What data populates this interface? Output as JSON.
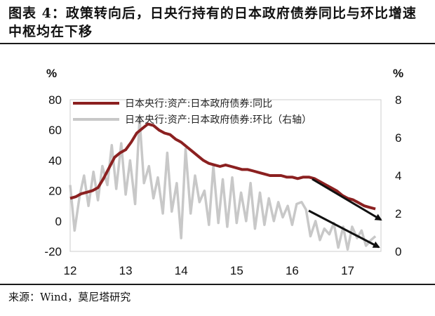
{
  "title": "图表 4：政策转向后，日央行持有的日本政府债券同比与环比增速中枢均在下移",
  "source": "来源：Wind，莫尼塔研究",
  "chart_data": {
    "type": "line",
    "left_unit": "%",
    "right_unit": "%",
    "ylim": [
      -20,
      80
    ],
    "y2lim": [
      0,
      8
    ],
    "yticks": [
      -20,
      0,
      20,
      40,
      60,
      80
    ],
    "y2ticks": [
      0,
      2,
      4,
      6,
      8
    ],
    "xlim": [
      2012,
      2017.6
    ],
    "xticks": [
      {
        "value": 2012,
        "label": "12"
      },
      {
        "value": 2013,
        "label": "13"
      },
      {
        "value": 2014,
        "label": "14"
      },
      {
        "value": 2015,
        "label": "15"
      },
      {
        "value": 2016,
        "label": "16"
      },
      {
        "value": 2017,
        "label": "17"
      }
    ],
    "legend": "top",
    "series": [
      {
        "name": "日本央行:资产:日本政府债券:同比",
        "axis": "left",
        "color": "#8b2020",
        "points": [
          [
            2012.0,
            15
          ],
          [
            2012.1,
            16
          ],
          [
            2012.2,
            18
          ],
          [
            2012.3,
            19
          ],
          [
            2012.4,
            20
          ],
          [
            2012.5,
            22
          ],
          [
            2012.6,
            28
          ],
          [
            2012.7,
            35
          ],
          [
            2012.8,
            42
          ],
          [
            2012.9,
            45
          ],
          [
            2013.0,
            47
          ],
          [
            2013.1,
            52
          ],
          [
            2013.2,
            58
          ],
          [
            2013.3,
            61
          ],
          [
            2013.4,
            64
          ],
          [
            2013.5,
            63
          ],
          [
            2013.6,
            60
          ],
          [
            2013.7,
            58
          ],
          [
            2013.8,
            57
          ],
          [
            2013.9,
            54
          ],
          [
            2014.0,
            52
          ],
          [
            2014.1,
            49
          ],
          [
            2014.2,
            46
          ],
          [
            2014.3,
            43
          ],
          [
            2014.4,
            40
          ],
          [
            2014.5,
            38
          ],
          [
            2014.6,
            37
          ],
          [
            2014.7,
            36
          ],
          [
            2014.8,
            37
          ],
          [
            2014.9,
            36
          ],
          [
            2015.0,
            35
          ],
          [
            2015.1,
            34
          ],
          [
            2015.2,
            34
          ],
          [
            2015.3,
            33
          ],
          [
            2015.4,
            32
          ],
          [
            2015.5,
            31
          ],
          [
            2015.6,
            30
          ],
          [
            2015.7,
            30
          ],
          [
            2015.8,
            30
          ],
          [
            2015.9,
            29
          ],
          [
            2016.0,
            29
          ],
          [
            2016.1,
            28
          ],
          [
            2016.2,
            29
          ],
          [
            2016.3,
            29
          ],
          [
            2016.4,
            28
          ],
          [
            2016.5,
            26
          ],
          [
            2016.6,
            24
          ],
          [
            2016.7,
            22
          ],
          [
            2016.8,
            20
          ],
          [
            2016.9,
            17
          ],
          [
            2017.0,
            15
          ],
          [
            2017.1,
            14
          ],
          [
            2017.2,
            12
          ],
          [
            2017.3,
            10
          ],
          [
            2017.4,
            9
          ],
          [
            2017.5,
            8
          ]
        ]
      },
      {
        "name": "日本央行:资产:日本政府债券:环比（右轴）",
        "axis": "right",
        "color": "#c8c8c8",
        "points": [
          [
            2012.0,
            3.5
          ],
          [
            2012.08,
            1.1
          ],
          [
            2012.17,
            2.9
          ],
          [
            2012.25,
            4.0
          ],
          [
            2012.33,
            2.4
          ],
          [
            2012.42,
            4.2
          ],
          [
            2012.5,
            2.7
          ],
          [
            2012.58,
            4.5
          ],
          [
            2012.67,
            3.5
          ],
          [
            2012.75,
            5.6
          ],
          [
            2012.83,
            3.3
          ],
          [
            2012.92,
            5.7
          ],
          [
            2013.0,
            3.0
          ],
          [
            2013.08,
            4.8
          ],
          [
            2013.17,
            2.5
          ],
          [
            2013.25,
            7.0
          ],
          [
            2013.33,
            3.6
          ],
          [
            2013.42,
            4.5
          ],
          [
            2013.5,
            2.8
          ],
          [
            2013.58,
            3.9
          ],
          [
            2013.67,
            2.0
          ],
          [
            2013.75,
            5.2
          ],
          [
            2013.83,
            2.1
          ],
          [
            2013.92,
            3.6
          ],
          [
            2014.0,
            0.7
          ],
          [
            2014.08,
            5.4
          ],
          [
            2014.17,
            2.0
          ],
          [
            2014.25,
            4.0
          ],
          [
            2014.33,
            2.6
          ],
          [
            2014.42,
            3.2
          ],
          [
            2014.5,
            1.4
          ],
          [
            2014.58,
            4.5
          ],
          [
            2014.67,
            1.5
          ],
          [
            2014.75,
            3.8
          ],
          [
            2014.83,
            1.3
          ],
          [
            2014.92,
            3.9
          ],
          [
            2015.0,
            1.5
          ],
          [
            2015.08,
            3.1
          ],
          [
            2015.17,
            1.6
          ],
          [
            2015.25,
            3.6
          ],
          [
            2015.33,
            1.2
          ],
          [
            2015.42,
            3.1
          ],
          [
            2015.5,
            1.4
          ],
          [
            2015.58,
            2.8
          ],
          [
            2015.67,
            1.6
          ],
          [
            2015.75,
            2.6
          ],
          [
            2015.83,
            1.8
          ],
          [
            2015.92,
            2.4
          ],
          [
            2016.0,
            1.4
          ],
          [
            2016.08,
            2.5
          ],
          [
            2016.17,
            2.6
          ],
          [
            2016.25,
            2.2
          ],
          [
            2016.33,
            0.8
          ],
          [
            2016.42,
            1.6
          ],
          [
            2016.5,
            0.6
          ],
          [
            2016.58,
            1.2
          ],
          [
            2016.67,
            0.9
          ],
          [
            2016.75,
            1.5
          ],
          [
            2016.83,
            0.2
          ],
          [
            2016.92,
            1.3
          ],
          [
            2017.0,
            0.1
          ],
          [
            2017.08,
            1.3
          ],
          [
            2017.17,
            0.7
          ],
          [
            2017.25,
            1.1
          ],
          [
            2017.33,
            0.3
          ],
          [
            2017.42,
            0.6
          ],
          [
            2017.5,
            0.8
          ]
        ]
      }
    ],
    "annotations": [
      "arrow",
      "arrow"
    ]
  }
}
